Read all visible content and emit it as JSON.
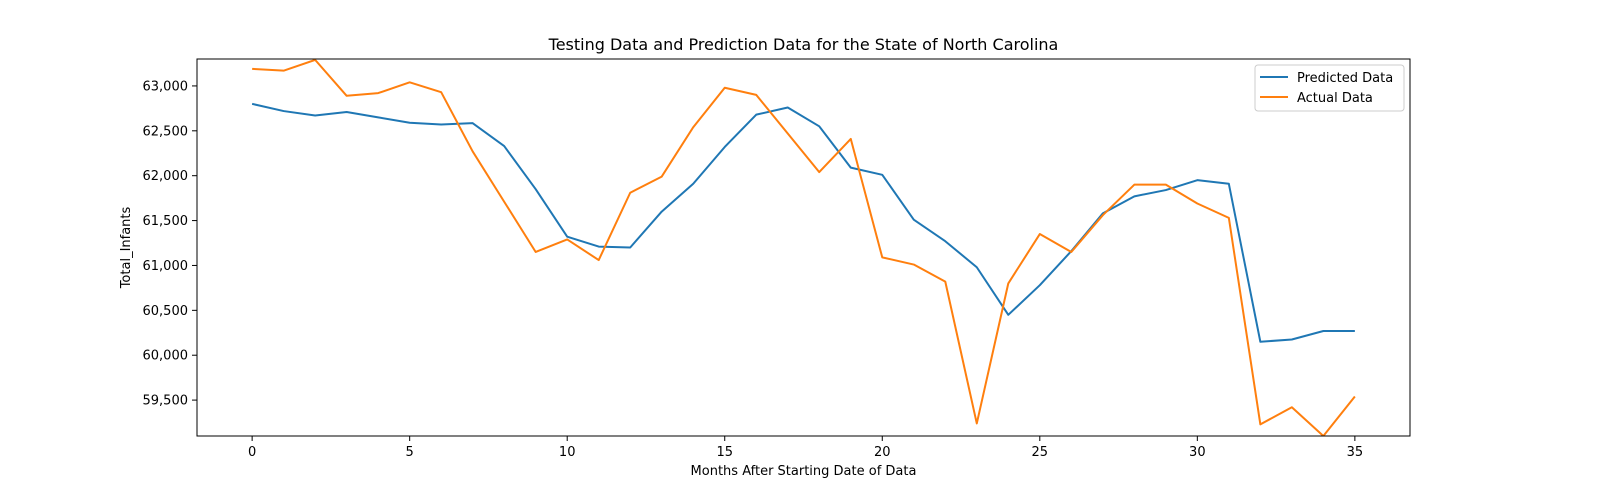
{
  "chart_data": {
    "type": "line",
    "title": "Testing Data and Prediction Data for the State of North Carolina",
    "xlabel": "Months After Starting Date of Data",
    "ylabel": "Total_Infants",
    "xlim": [
      -1.75,
      36.75
    ],
    "ylim": [
      59100,
      63300
    ],
    "xticks": [
      0,
      5,
      10,
      15,
      20,
      25,
      30,
      35
    ],
    "yticks": [
      59500,
      60000,
      60500,
      61000,
      61500,
      62000,
      62500,
      63000
    ],
    "ytick_labels": [
      "59,500",
      "60,000",
      "60,500",
      "61,000",
      "61,500",
      "62,000",
      "62,500",
      "63,000"
    ],
    "grid": false,
    "legend_position": "top-right",
    "x": [
      0,
      1,
      2,
      3,
      4,
      5,
      6,
      7,
      8,
      9,
      10,
      11,
      12,
      13,
      14,
      15,
      16,
      17,
      18,
      19,
      20,
      21,
      22,
      23,
      24,
      25,
      26,
      27,
      28,
      29,
      30,
      31,
      32,
      33,
      34,
      35
    ],
    "series": [
      {
        "name": "Predicted Data",
        "color": "#1f77b4",
        "values": [
          62800,
          62720,
          62670,
          62710,
          62650,
          62590,
          62570,
          62585,
          62330,
          61850,
          61320,
          61210,
          61200,
          61600,
          61910,
          62320,
          62680,
          62760,
          62550,
          62090,
          62010,
          61510,
          61270,
          60980,
          60450,
          60780,
          61160,
          61580,
          61770,
          61840,
          61950,
          61910,
          60150,
          60175,
          60270,
          60270
        ]
      },
      {
        "name": "Actual Data",
        "color": "#ff7f0e",
        "values": [
          63190,
          63170,
          63290,
          62890,
          62920,
          63040,
          62930,
          62270,
          61710,
          61150,
          61290,
          61060,
          61810,
          61990,
          62540,
          62980,
          62900,
          62470,
          62040,
          62410,
          61090,
          61010,
          60820,
          59240,
          60800,
          61350,
          61150,
          61560,
          61900,
          61900,
          61690,
          61530,
          59230,
          59420,
          59100,
          59540
        ]
      }
    ]
  }
}
